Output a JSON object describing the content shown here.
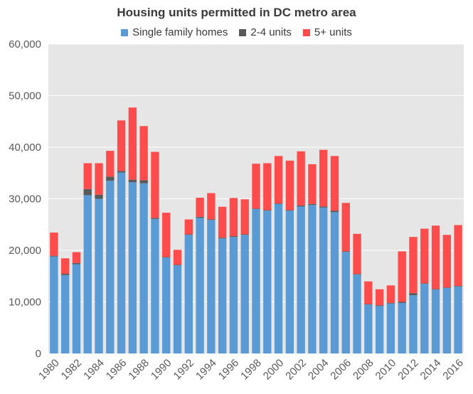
{
  "chart_data": {
    "type": "bar",
    "stacked": true,
    "title": "Housing units permitted in DC metro area",
    "categories": [
      "1980",
      "1981",
      "1982",
      "1983",
      "1984",
      "1985",
      "1986",
      "1987",
      "1988",
      "1989",
      "1990",
      "1991",
      "1992",
      "1993",
      "1994",
      "1995",
      "1996",
      "1997",
      "1998",
      "1999",
      "2000",
      "2001",
      "2002",
      "2003",
      "2004",
      "2005",
      "2006",
      "2007",
      "2008",
      "2009",
      "2010",
      "2011",
      "2012",
      "2013",
      "2014",
      "2015",
      "2016"
    ],
    "x_tick_labels": [
      "1980",
      "1982",
      "1984",
      "1986",
      "1988",
      "1990",
      "1992",
      "1994",
      "1996",
      "1998",
      "2000",
      "2002",
      "2004",
      "2006",
      "2008",
      "2010",
      "2012",
      "2014",
      "2016"
    ],
    "ylim": [
      0,
      60000
    ],
    "y_ticks": [
      "0",
      "10,000",
      "20,000",
      "30,000",
      "40,000",
      "50,000",
      "60,000"
    ],
    "y_tick_values": [
      0,
      10000,
      20000,
      30000,
      40000,
      50000,
      60000
    ],
    "grid": true,
    "legend_position": "top",
    "plot_background": "#e6e6e6",
    "series": [
      {
        "name": "Single family homes",
        "color": "#5b9bd5",
        "values": [
          18800,
          15200,
          17300,
          30700,
          30000,
          33500,
          35100,
          33200,
          33000,
          26100,
          18600,
          17100,
          23000,
          26300,
          25900,
          22300,
          22600,
          23000,
          28000,
          27700,
          29000,
          27700,
          28500,
          28800,
          28300,
          27400,
          19700,
          15300,
          9500,
          9200,
          9700,
          9800,
          11300,
          13500,
          12400,
          12700,
          13000
        ]
      },
      {
        "name": "2-4 units",
        "color": "#595959",
        "values": [
          150,
          250,
          250,
          1200,
          800,
          800,
          300,
          500,
          600,
          200,
          100,
          100,
          100,
          200,
          100,
          150,
          150,
          100,
          100,
          100,
          100,
          100,
          200,
          200,
          200,
          300,
          100,
          100,
          80,
          150,
          100,
          200,
          400,
          100,
          100,
          100,
          100
        ]
      },
      {
        "name": "5+ units",
        "color": "#fe4c4c",
        "values": [
          4500,
          3000,
          2100,
          5000,
          6100,
          5000,
          9800,
          14000,
          10500,
          12800,
          8600,
          2900,
          2900,
          3700,
          5100,
          6000,
          7400,
          6800,
          8700,
          9100,
          9200,
          9600,
          10500,
          7700,
          11000,
          10600,
          9400,
          7800,
          4400,
          3100,
          3400,
          9800,
          10900,
          10600,
          12300,
          10200,
          11800
        ]
      }
    ]
  }
}
